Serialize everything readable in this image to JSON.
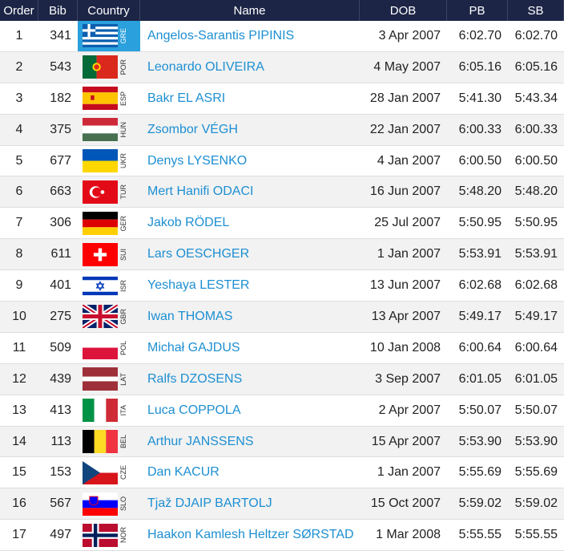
{
  "header": [
    "Order",
    "Bib",
    "Country",
    "Name",
    "DOB",
    "PB",
    "SB"
  ],
  "rows": [
    [
      1,
      341,
      "GRE",
      "Angelos-Sarantis PIPINIS",
      "3 Apr 2007",
      "6:02.70",
      "6:02.70"
    ],
    [
      2,
      543,
      "POR",
      "Leonardo OLIVEIRA",
      "4 May 2007",
      "6:05.16",
      "6:05.16"
    ],
    [
      3,
      182,
      "ESP",
      "Bakr EL ASRI",
      "28 Jan 2007",
      "5:41.30",
      "5:43.34"
    ],
    [
      4,
      375,
      "HUN",
      "Zsombor VÉGH",
      "22 Jan 2007",
      "6:00.33",
      "6:00.33"
    ],
    [
      5,
      677,
      "UKR",
      "Denys LYSENKO",
      "4 Jan 2007",
      "6:00.50",
      "6:00.50"
    ],
    [
      6,
      663,
      "TUR",
      "Mert Hanifi ODACI",
      "16 Jun 2007",
      "5:48.20",
      "5:48.20"
    ],
    [
      7,
      306,
      "GER",
      "Jakob RÖDEL",
      "25 Jul 2007",
      "5:50.95",
      "5:50.95"
    ],
    [
      8,
      611,
      "SUI",
      "Lars OESCHGER",
      "1 Jan 2007",
      "5:53.91",
      "5:53.91"
    ],
    [
      9,
      401,
      "ISR",
      "Yeshaya LESTER",
      "13 Jun 2007",
      "6:02.68",
      "6:02.68"
    ],
    [
      10,
      275,
      "GBR",
      "Iwan THOMAS",
      "13 Apr 2007",
      "5:49.17",
      "5:49.17"
    ],
    [
      11,
      509,
      "POL",
      "Michał GAJDUS",
      "10 Jan 2008",
      "6:00.64",
      "6:00.64"
    ],
    [
      12,
      439,
      "LAT",
      "Ralfs DZOSENS",
      "3 Sep 2007",
      "6:01.05",
      "6:01.05"
    ],
    [
      13,
      413,
      "ITA",
      "Luca COPPOLA",
      "2 Apr 2007",
      "5:50.07",
      "5:50.07"
    ],
    [
      14,
      113,
      "BEL",
      "Arthur JANSSENS",
      "15 Apr 2007",
      "5:53.90",
      "5:53.90"
    ],
    [
      15,
      153,
      "CZE",
      "Dan KACUR",
      "1 Jan 2007",
      "5:55.69",
      "5:55.69"
    ],
    [
      16,
      567,
      "SLO",
      "Tjaž DJAIP BARTOLJ",
      "15 Oct 2007",
      "5:59.02",
      "5:59.02"
    ],
    [
      17,
      497,
      "NOR",
      "Haakon Kamlesh Heltzer SØRSTAD",
      "1 Mar 2008",
      "5:55.55",
      "5:55.55"
    ]
  ]
}
